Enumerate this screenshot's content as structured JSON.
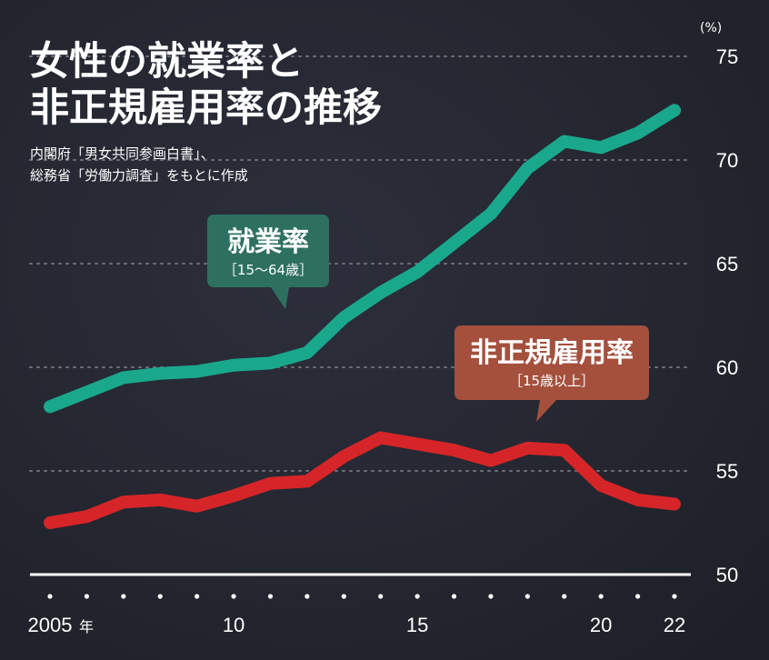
{
  "header": {
    "title_line1": "女性の就業率と",
    "title_line2": "非正規雇用率の推移",
    "source_line1": "内閣府「男女共同参画白書」、",
    "source_line2": "総務省「労働力調査」をもとに作成"
  },
  "chart_data": {
    "type": "line",
    "title": "女性の就業率と非正規雇用率の推移",
    "y_unit": "(%)",
    "ylim": [
      50,
      75
    ],
    "y_ticks": [
      "75",
      "70",
      "65",
      "60",
      "55",
      "50"
    ],
    "x_ticks": [
      {
        "year": 2005,
        "label": "2005",
        "suffix": "年"
      },
      {
        "year": 2010,
        "label": "10",
        "suffix": ""
      },
      {
        "year": 2015,
        "label": "15",
        "suffix": ""
      },
      {
        "year": 2020,
        "label": "20",
        "suffix": ""
      },
      {
        "year": 2022,
        "label": "22",
        "suffix": ""
      }
    ],
    "xlim": [
      2005,
      2022
    ],
    "grid": "dotted horizontal",
    "series": [
      {
        "name": "就業率",
        "sub": "［15〜64歳］",
        "color": "#1aa88d",
        "x": [
          2005,
          2006,
          2007,
          2008,
          2009,
          2010,
          2011,
          2012,
          2013,
          2014,
          2015,
          2016,
          2017,
          2018,
          2019,
          2020,
          2021,
          2022
        ],
        "y": [
          58.1,
          58.8,
          59.5,
          59.7,
          59.8,
          60.1,
          60.2,
          60.7,
          62.4,
          63.6,
          64.6,
          66.0,
          67.4,
          69.6,
          70.9,
          70.6,
          71.3,
          72.4
        ]
      },
      {
        "name": "非正規雇用率",
        "sub": "［15歳以上］",
        "color": "#d62528",
        "x": [
          2005,
          2006,
          2007,
          2008,
          2009,
          2010,
          2011,
          2012,
          2013,
          2014,
          2015,
          2016,
          2017,
          2018,
          2019,
          2020,
          2021,
          2022
        ],
        "y": [
          52.5,
          52.8,
          53.5,
          53.6,
          53.3,
          53.8,
          54.4,
          54.5,
          55.7,
          56.6,
          56.3,
          56.0,
          55.5,
          56.1,
          56.0,
          54.3,
          53.6,
          53.4
        ]
      }
    ],
    "callout_colors": {
      "employment": "#2e7060",
      "nonregular": "#a4503d"
    }
  }
}
